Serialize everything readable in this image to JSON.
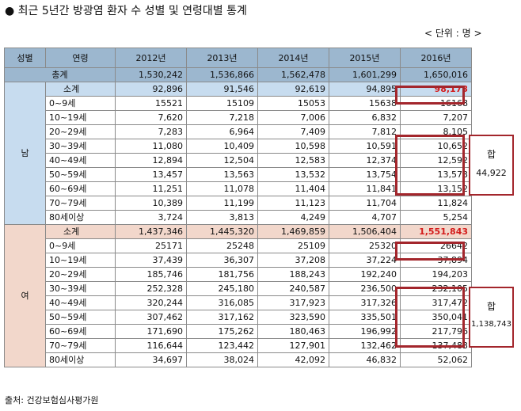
{
  "title": "● 최근 5년간 방광염 환자 수 성별 및 연령대별 통계",
  "unit": "< 단위 : 명 >",
  "source": "출처: 건강보험심사평가원",
  "headers": [
    "성별",
    "연령",
    "2012년",
    "2013년",
    "2014년",
    "2015년",
    "2016년"
  ],
  "total": {
    "label": "총계",
    "values": [
      "1,530,242",
      "1,536,866",
      "1,562,478",
      "1,601,299",
      "1,650,016"
    ]
  },
  "male": {
    "sex": "남",
    "subtotal": {
      "label": "소계",
      "values": [
        "92,896",
        "91,546",
        "92,619",
        "94,895",
        "98,173"
      ]
    },
    "rows": [
      {
        "age": "0~9세",
        "values": [
          "15521",
          "15109",
          "15053",
          "15638",
          "16168"
        ]
      },
      {
        "age": "10~19세",
        "values": [
          "7,620",
          "7,218",
          "7,006",
          "6,832",
          "7,207"
        ]
      },
      {
        "age": "20~29세",
        "values": [
          "7,283",
          "6,964",
          "7,409",
          "7,812",
          "8,105"
        ]
      },
      {
        "age": "30~39세",
        "values": [
          "11,080",
          "10,409",
          "10,598",
          "10,591",
          "10,652"
        ]
      },
      {
        "age": "40~49세",
        "values": [
          "12,894",
          "12,504",
          "12,583",
          "12,374",
          "12,592"
        ]
      },
      {
        "age": "50~59세",
        "values": [
          "13,457",
          "13,563",
          "13,532",
          "13,754",
          "13,573"
        ]
      },
      {
        "age": "60~69세",
        "values": [
          "11,251",
          "11,078",
          "11,404",
          "11,841",
          "13,152"
        ]
      },
      {
        "age": "70~79세",
        "values": [
          "10,389",
          "11,199",
          "11,123",
          "11,704",
          "11,824"
        ]
      },
      {
        "age": "80세이상",
        "values": [
          "3,724",
          "3,813",
          "4,249",
          "4,707",
          "5,254"
        ]
      }
    ],
    "sum_label": "합",
    "sum_value": "44,922"
  },
  "female": {
    "sex": "여",
    "subtotal": {
      "label": "소계",
      "values": [
        "1,437,346",
        "1,445,320",
        "1,469,859",
        "1,506,404",
        "1,551,843"
      ]
    },
    "rows": [
      {
        "age": "0~9세",
        "values": [
          "25171",
          "25248",
          "25109",
          "25320",
          "26642"
        ]
      },
      {
        "age": "10~19세",
        "values": [
          "37,439",
          "36,307",
          "37,208",
          "37,224",
          "37,894"
        ]
      },
      {
        "age": "20~29세",
        "values": [
          "185,746",
          "181,756",
          "188,243",
          "192,240",
          "194,203"
        ]
      },
      {
        "age": "30~39세",
        "values": [
          "252,328",
          "245,180",
          "240,587",
          "236,500",
          "232,105"
        ]
      },
      {
        "age": "40~49세",
        "values": [
          "320,244",
          "316,085",
          "317,923",
          "317,326",
          "317,472"
        ]
      },
      {
        "age": "50~59세",
        "values": [
          "307,462",
          "317,162",
          "323,590",
          "335,501",
          "350,041"
        ]
      },
      {
        "age": "60~69세",
        "values": [
          "171,690",
          "175,262",
          "180,463",
          "196,992",
          "217,796"
        ]
      },
      {
        "age": "70~79세",
        "values": [
          "116,644",
          "123,442",
          "127,901",
          "132,462",
          "137,483"
        ]
      },
      {
        "age": "80세이상",
        "values": [
          "34,697",
          "38,024",
          "42,092",
          "46,832",
          "52,062"
        ]
      }
    ],
    "sum_label": "합",
    "sum_value": "1,138,743"
  },
  "colors": {
    "header_bg": "#9cb7cf",
    "male_bg": "#c7dcef",
    "female_bg": "#f2d7cb",
    "highlight": "#d31b1b",
    "box_border": "#a3262c"
  }
}
